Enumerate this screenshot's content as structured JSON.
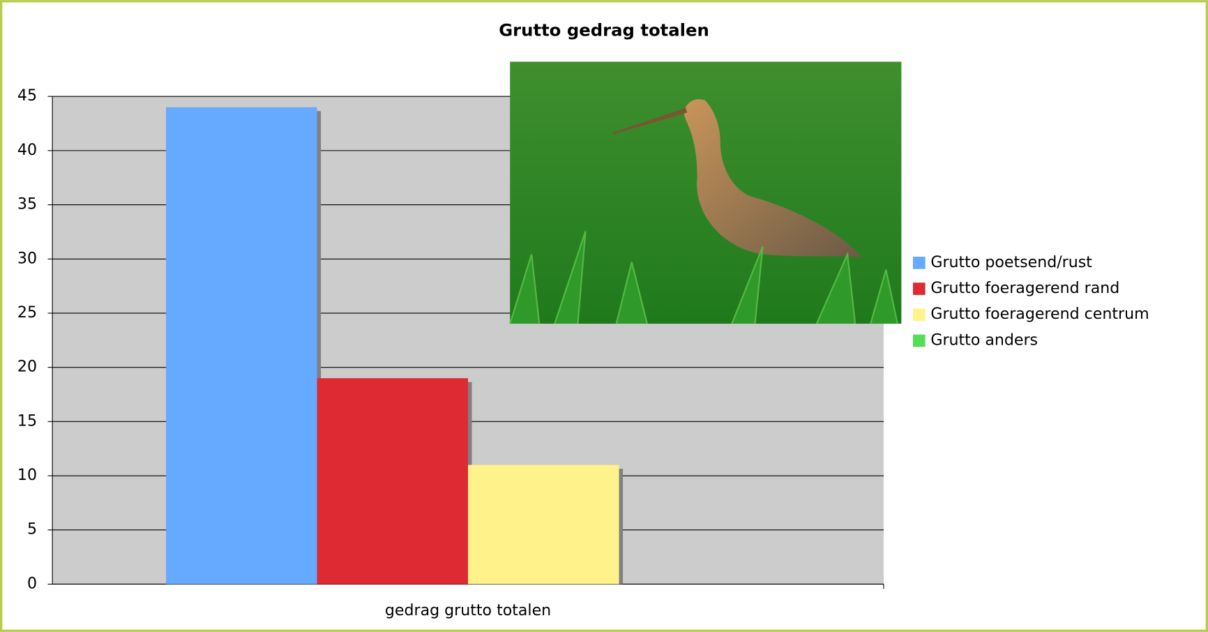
{
  "chart_data": {
    "type": "bar",
    "title": "Grutto gedrag totalen",
    "categories": [
      "gedrag grutto totalen"
    ],
    "series": [
      {
        "name": "Grutto poetsend/rust",
        "color": "#66aaff",
        "values": [
          44
        ]
      },
      {
        "name": "Grutto foeragerend rand",
        "color": "#dd2a33",
        "values": [
          19
        ]
      },
      {
        "name": "Grutto foeragerend centrum",
        "color": "#fff28a",
        "values": [
          11
        ]
      },
      {
        "name": "Grutto anders",
        "color": "#55dd55",
        "values": [
          0
        ]
      }
    ],
    "ylim": [
      0,
      45
    ],
    "yticks": [
      0,
      5,
      10,
      15,
      20,
      25,
      30,
      35,
      40,
      45
    ],
    "grid": true,
    "legend": "right"
  }
}
